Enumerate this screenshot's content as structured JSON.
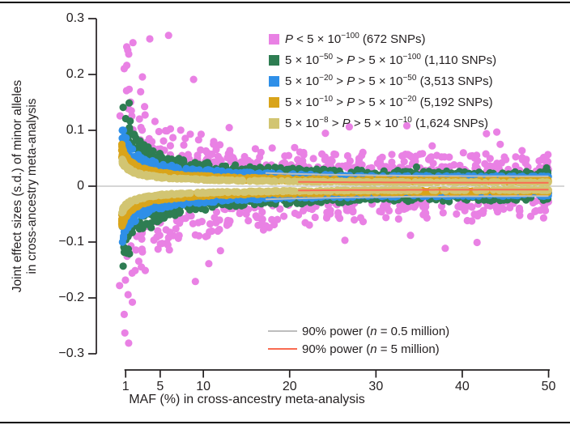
{
  "page": {
    "top_rule_color": "#000000",
    "bottom_rule_color": "#000000",
    "background": "#ffffff"
  },
  "chart_data": {
    "type": "scatter",
    "title": "",
    "xlabel": "MAF (%) in cross-ancestry meta-analysis",
    "ylabel_line1": "Joint effect sizes (s.d.) of minor alleles",
    "ylabel_line2": "in cross-ancestry meta-analysis",
    "xlim": [
      0.15,
      50
    ],
    "ylim": [
      -0.3,
      0.3
    ],
    "x_ticks": [
      1,
      5,
      10,
      20,
      30,
      40,
      50
    ],
    "x_tick_labels": [
      "1",
      "5",
      "10",
      "20",
      "30",
      "40",
      "50"
    ],
    "y_ticks": [
      0.3,
      0.2,
      0.1,
      0,
      -0.1,
      -0.2,
      -0.3
    ],
    "y_tick_labels": [
      "0.3",
      "0.2",
      "0.1",
      "0",
      "−0.1",
      "−0.2",
      "−0.3"
    ],
    "grid": false,
    "zero_line": {
      "value": 0,
      "color": "#C8C8C8"
    },
    "axis_color": "#231F20",
    "legend_position": "top-right",
    "seed": 12345,
    "series": [
      {
        "key": "p-lt-5e-100",
        "label_parts": [
          {
            "t": "P",
            "italic": true
          },
          {
            "t": " < 5 × 10"
          },
          {
            "t": "−100",
            "sup": true
          },
          {
            "t": " (672 SNPs)"
          }
        ],
        "snp_count": 672,
        "color": "#E981E4",
        "render": {
          "points": 500,
          "maf_min": 0.8,
          "maf_exp": 1.15,
          "c_lo": 0.019,
          "c_hi": 0.04,
          "c_exp": 1.8,
          "tail_frac": 0.1,
          "tail_mult": 1.8,
          "beta_cap": 0.27,
          "edge_pileup": 0.05
        },
        "highlight_points": [
          [
            1.84,
            0.257
          ],
          [
            1.1,
            0.171
          ],
          [
            1.66,
            0.135
          ],
          [
            0.35,
            0.126
          ],
          [
            4.4,
            0.116
          ],
          [
            2.1,
            -0.151
          ],
          [
            0.3,
            -0.178
          ],
          [
            1.35,
            -0.281
          ],
          [
            26.4,
            -0.097
          ],
          [
            44,
            0.097
          ],
          [
            42.8,
            0.094
          ],
          [
            13,
            0.105
          ],
          [
            34,
            -0.088
          ]
        ]
      },
      {
        "key": "5e-50-gt-p-gt-5e-100",
        "label_parts": [
          {
            "t": "5 × 10"
          },
          {
            "t": "−50",
            "sup": true
          },
          {
            "t": " > "
          },
          {
            "t": "P",
            "italic": true
          },
          {
            "t": " > 5 × 10"
          },
          {
            "t": "−100",
            "sup": true
          },
          {
            "t": " (1,110 SNPs)"
          }
        ],
        "snp_count": 1110,
        "color": "#2E7D52",
        "render": {
          "points": 600,
          "maf_min": 0.7,
          "maf_exp": 1.3,
          "c_lo": 0.0127,
          "c_hi": 0.0185,
          "c_exp": 1.4,
          "tail_frac": 0.03,
          "tail_mult": 0.5,
          "beta_cap": 0.16,
          "edge_pileup": 0.05
        },
        "highlight_points": [
          [
            1.4,
            0.149
          ]
        ]
      },
      {
        "key": "5e-20-gt-p-gt-5e-50",
        "label_parts": [
          {
            "t": "5 × 10"
          },
          {
            "t": "−20",
            "sup": true
          },
          {
            "t": " > "
          },
          {
            "t": "P",
            "italic": true
          },
          {
            "t": " > 5 × 10"
          },
          {
            "t": "−50",
            "sup": true
          },
          {
            "t": " (3,513 SNPs)"
          }
        ],
        "snp_count": 3513,
        "color": "#2E8FE8",
        "render": {
          "points": 1050,
          "maf_min": 0.6,
          "maf_exp": 1.45,
          "c_lo": 0.008,
          "c_hi": 0.0128,
          "c_exp": 1.2,
          "tail_frac": 0.0,
          "tail_mult": 0,
          "beta_cap": 0.1,
          "edge_pileup": 0.05
        },
        "highlight_points": []
      },
      {
        "key": "5e-10-gt-p-gt-5e-20",
        "label_parts": [
          {
            "t": "5 × 10"
          },
          {
            "t": "−10",
            "sup": true
          },
          {
            "t": " > "
          },
          {
            "t": "P",
            "italic": true
          },
          {
            "t": " > 5 × 10"
          },
          {
            "t": "−20",
            "sup": true
          },
          {
            "t": " (5,192 SNPs)"
          }
        ],
        "snp_count": 5192,
        "color": "#D9A41A",
        "render": {
          "points": 1300,
          "maf_min": 0.55,
          "maf_exp": 1.6,
          "c_lo": 0.0053,
          "c_hi": 0.008,
          "c_exp": 1.1,
          "tail_frac": 0.0,
          "tail_mult": 0,
          "beta_cap": 0.075,
          "edge_pileup": 0.05
        },
        "highlight_points": []
      },
      {
        "key": "5e-8-gt-p-gt-5e-10",
        "label_parts": [
          {
            "t": "5 × 10"
          },
          {
            "t": "−8",
            "sup": true
          },
          {
            "t": " > "
          },
          {
            "t": "P",
            "italic": true
          },
          {
            "t": " > 5 × 10"
          },
          {
            "t": "−10",
            "sup": true
          },
          {
            "t": " (1,624 SNPs)"
          }
        ],
        "snp_count": 1624,
        "color": "#D2C572",
        "render": {
          "points": 600,
          "maf_min": 0.55,
          "maf_exp": 1.6,
          "c_lo": 0.0045,
          "c_hi": 0.0054,
          "c_exp": 1.0,
          "tail_frac": 0.0,
          "tail_mult": 0,
          "beta_cap": 0.06,
          "edge_pileup": 0.05
        },
        "highlight_points": []
      }
    ],
    "power_curves": [
      {
        "key": "power-0p5m",
        "label_parts": [
          {
            "t": "90% power ("
          },
          {
            "t": "n",
            "italic": true
          },
          {
            "t": " = 0.5 million)"
          }
        ],
        "color": "#BDBDBD",
        "c": 0.0126,
        "beta_max": 0.215
      },
      {
        "key": "power-5m",
        "label_parts": [
          {
            "t": "90% power ("
          },
          {
            "t": "n",
            "italic": true
          },
          {
            "t": " = 5 million)"
          }
        ],
        "color": "#F96B51",
        "c": 0.0044,
        "beta_max": 0.068
      }
    ]
  }
}
